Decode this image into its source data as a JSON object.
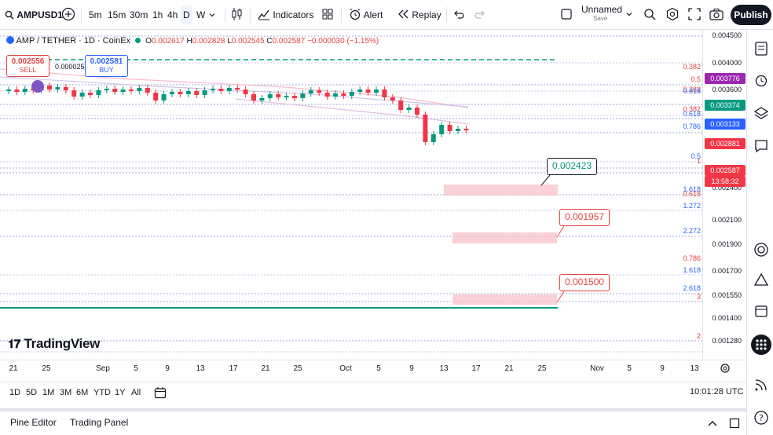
{
  "toolbar": {
    "symbol": "AMPUSD1",
    "intervals": [
      "5m",
      "15m",
      "30m",
      "1h",
      "4h",
      "D",
      "W"
    ],
    "active_interval": "D",
    "indicators_label": "Indicators",
    "alert_label": "Alert",
    "replay_label": "Replay",
    "layout_name": "Unnamed",
    "layout_status": "Save",
    "publish_label": "Publish"
  },
  "legend": {
    "title": "AMP / TETHER · 1D · CoinEx",
    "open_label": "O",
    "open": "0.002617",
    "high_label": "H",
    "high": "0.002828",
    "low_label": "L",
    "low": "0.002545",
    "close_label": "C",
    "close": "0.002587",
    "change": "−0.000030 (−1.15%)"
  },
  "trade": {
    "sell_price": "0.002556",
    "sell_label": "SELL",
    "spread": "0.000025",
    "buy_price": "0.002581",
    "buy_label": "BUY"
  },
  "price_axis": {
    "labels": [
      "0.004500",
      "0.004000",
      "0.003600",
      "0.002400",
      "0.002100",
      "0.001900",
      "0.001700",
      "0.001550",
      "0.001400",
      "0.001280"
    ],
    "badges": [
      {
        "value": "0.003776",
        "color": "#9c27b0"
      },
      {
        "value": "0.003374",
        "color": "#089981"
      },
      {
        "value": "0.003133",
        "color": "#2962ff"
      },
      {
        "value": "0.002881",
        "color": "#f23645"
      },
      {
        "value": "0.002587",
        "color": "#f23645",
        "sub": "13:58:32"
      }
    ]
  },
  "fib_labels": [
    "0.382",
    "0.5",
    "0.382",
    "0.618",
    "0.382",
    "0.618",
    "0.786",
    "0.5",
    "1",
    "1.618",
    "0.618",
    "1.272",
    "2.272",
    "0.786",
    "1.618",
    "2.618",
    "3",
    "2"
  ],
  "callouts": {
    "target1": "0.002423",
    "target2": "0.001957",
    "target3": "0.001500"
  },
  "brand": "TradingView",
  "time_axis": [
    "21",
    "25",
    "Sep",
    "5",
    "9",
    "13",
    "17",
    "21",
    "25",
    "Oct",
    "5",
    "9",
    "13",
    "17",
    "21",
    "25",
    "Nov",
    "5",
    "9",
    "13"
  ],
  "ranges": [
    "1D",
    "5D",
    "1M",
    "3M",
    "6M",
    "YTD",
    "1Y",
    "All"
  ],
  "clock": "10:01:28 UTC",
  "bottom": {
    "pine_editor": "Pine Editor",
    "trading_panel": "Trading Panel"
  },
  "colors": {
    "up": "#089981",
    "down": "#f23645",
    "zone": "#f7c5cc"
  }
}
